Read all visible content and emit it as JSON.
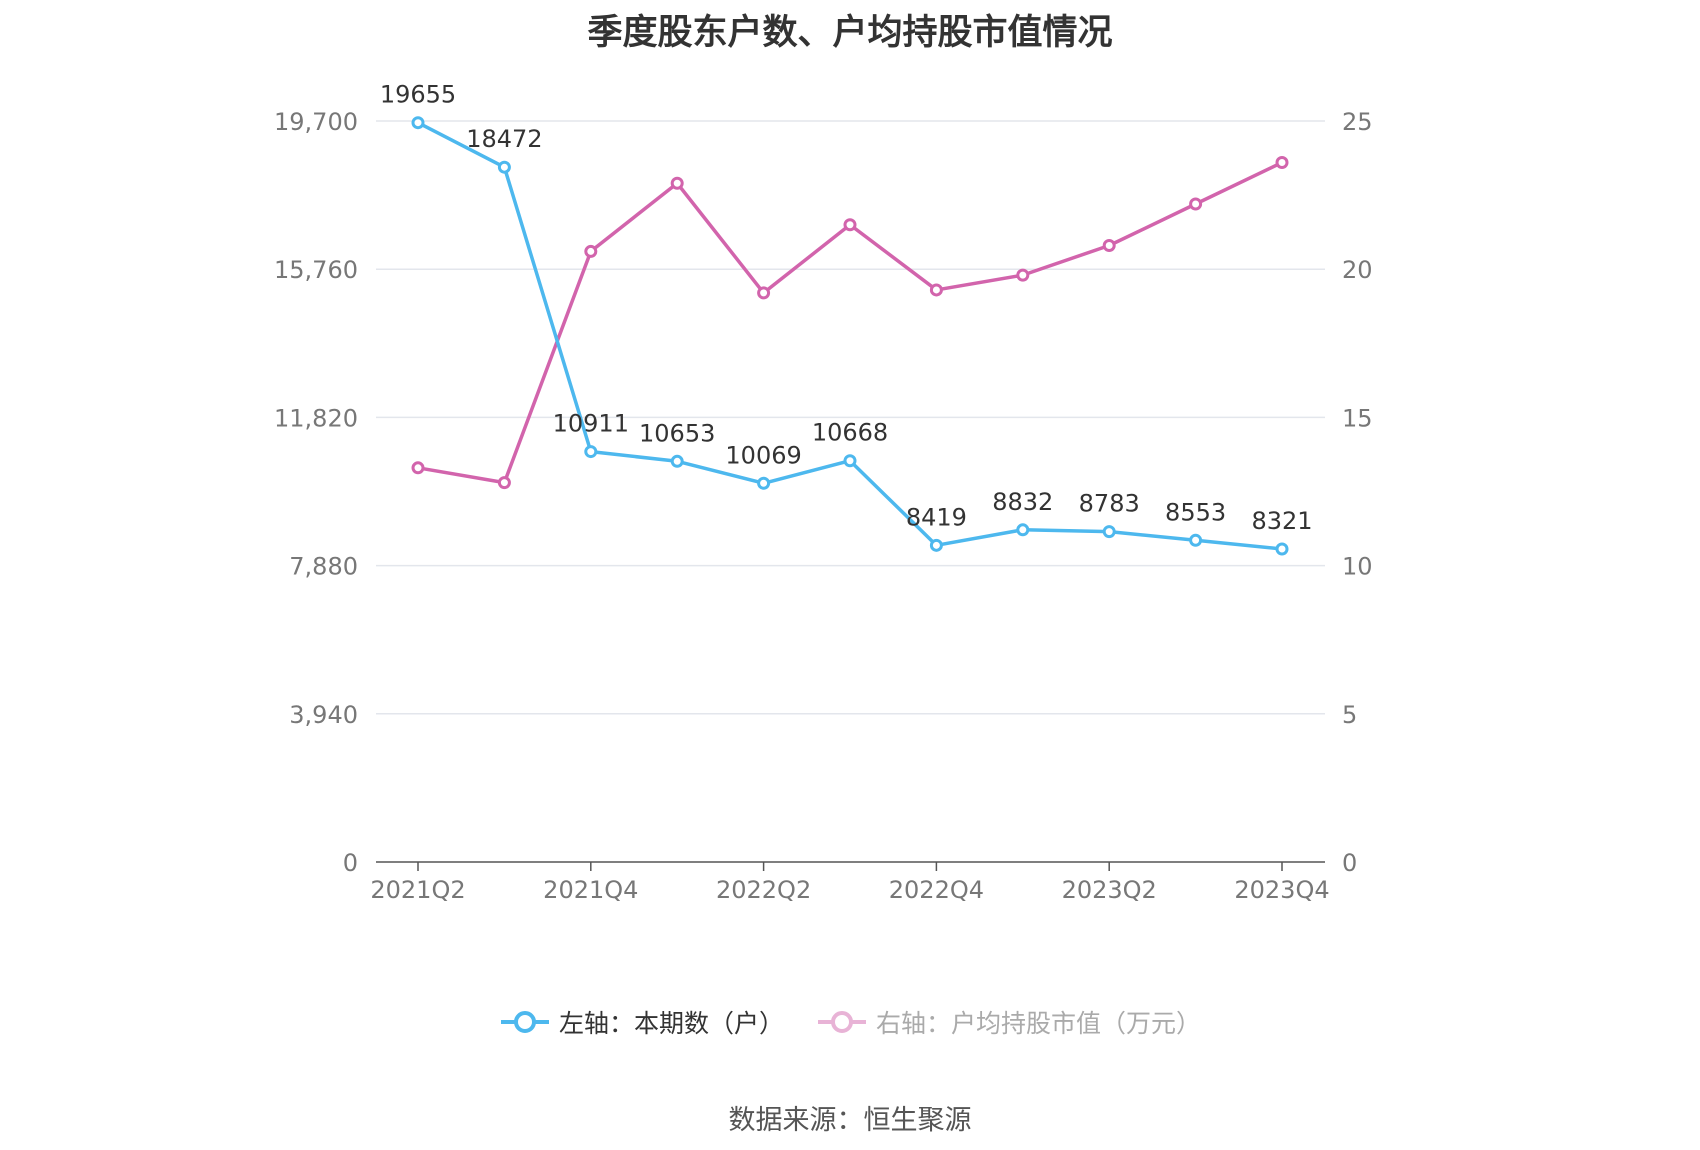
{
  "chart_data": {
    "type": "line",
    "title": "季度股东户数、户均持股市值情况",
    "categories": [
      "2021Q2",
      "2021Q3",
      "2021Q4",
      "2022Q1",
      "2022Q2",
      "2022Q3",
      "2022Q4",
      "2023Q1",
      "2023Q2",
      "2023Q3",
      "2023Q4"
    ],
    "x_tick_labels": [
      "2021Q2",
      "2021Q4",
      "2022Q2",
      "2022Q4",
      "2023Q2",
      "2023Q4"
    ],
    "y_left": {
      "ylim": [
        0,
        19700
      ],
      "ticks": [
        0,
        3940,
        7880,
        11820,
        15760,
        19700
      ],
      "tick_labels": [
        "0",
        "3,940",
        "7,880",
        "11,820",
        "15,760",
        "19,700"
      ]
    },
    "y_right": {
      "ylim": [
        0,
        25
      ],
      "ticks": [
        0,
        5,
        10,
        15,
        20,
        25
      ],
      "tick_labels": [
        "0",
        "5",
        "10",
        "15",
        "20",
        "25"
      ]
    },
    "grid": true,
    "legend_position": "bottom",
    "series": [
      {
        "name": "左轴：本期数（户）",
        "axis": "left",
        "color": "#4DB8EE",
        "values": [
          19655,
          18472,
          10911,
          10653,
          10069,
          10668,
          8419,
          8832,
          8783,
          8553,
          8321
        ],
        "data_labels": [
          "19655",
          "18472",
          "10911",
          "10653",
          "10069",
          "10668",
          "8419",
          "8832",
          "8783",
          "8553",
          "8321"
        ]
      },
      {
        "name": "右轴：户均持股市值（万元）",
        "axis": "right",
        "color": "#D264AC",
        "values": [
          13.3,
          12.8,
          20.6,
          22.9,
          19.2,
          21.5,
          19.3,
          19.8,
          20.8,
          22.2,
          23.6
        ]
      }
    ]
  },
  "source": "数据来源：恒生聚源"
}
